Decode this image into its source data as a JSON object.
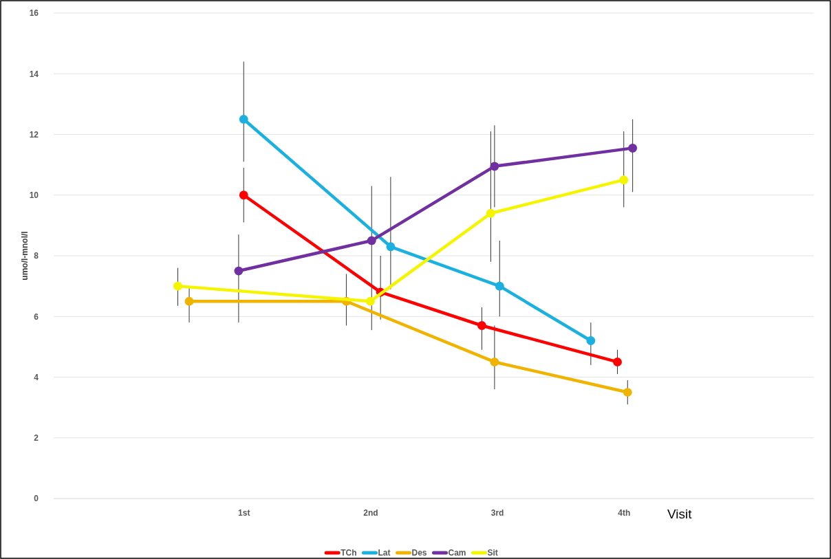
{
  "chart_data": {
    "type": "line",
    "ylabel": "umo/l-mnol/l",
    "xlabel": "Visit",
    "xlim": [
      -0.5,
      5.5
    ],
    "xticks": [
      {
        "value": 1,
        "label": "1st"
      },
      {
        "value": 2,
        "label": "2nd"
      },
      {
        "value": 3,
        "label": "3rd"
      },
      {
        "value": 4,
        "label": "4th"
      }
    ],
    "ylim": [
      0,
      16
    ],
    "yticks": [
      0,
      2,
      4,
      6,
      8,
      10,
      12,
      14,
      16
    ],
    "grid": "y",
    "legend": "bottom",
    "marker": "circle",
    "line_style": "solid",
    "series": [
      {
        "name": "TCh",
        "color": "#ff0000",
        "x": [
          1.0,
          2.08,
          2.88,
          3.95
        ],
        "values": [
          10.0,
          6.8,
          5.7,
          4.5
        ],
        "errors": [
          [
            9.1,
            10.9
          ],
          [
            5.9,
            8.0
          ],
          [
            4.9,
            6.3
          ],
          [
            4.1,
            4.9
          ]
        ]
      },
      {
        "name": "Lat",
        "color": "#1ab0e0",
        "x": [
          1.0,
          2.16,
          3.02,
          3.74
        ],
        "values": [
          12.5,
          8.3,
          7.0,
          5.2
        ],
        "errors": [
          [
            11.1,
            14.4
          ],
          [
            6.9,
            10.6
          ],
          [
            6.0,
            8.5
          ],
          [
            4.4,
            5.8
          ]
        ]
      },
      {
        "name": "Des",
        "color": "#f0b400",
        "x": [
          0.57,
          1.81,
          2.98,
          4.03
        ],
        "values": [
          6.5,
          6.5,
          4.5,
          3.5
        ],
        "errors": [
          [
            5.8,
            7.0
          ],
          [
            5.7,
            7.4
          ],
          [
            3.6,
            5.7
          ],
          [
            3.1,
            3.9
          ]
        ]
      },
      {
        "name": "Cam",
        "color": "#7030a0",
        "x": [
          0.96,
          2.01,
          2.98,
          4.07
        ],
        "values": [
          7.5,
          8.5,
          10.95,
          11.55
        ],
        "errors": [
          [
            5.8,
            8.7
          ],
          [
            5.55,
            10.3
          ],
          [
            9.6,
            12.3
          ],
          [
            10.1,
            12.5
          ]
        ]
      },
      {
        "name": "Sit",
        "color": "#f5f500",
        "x": [
          0.48,
          2.0,
          2.95,
          4.0
        ],
        "values": [
          7.0,
          6.5,
          9.4,
          10.5
        ],
        "errors": [
          [
            6.35,
            7.6
          ],
          null,
          [
            7.8,
            12.1
          ],
          [
            9.6,
            12.1
          ]
        ]
      }
    ]
  }
}
